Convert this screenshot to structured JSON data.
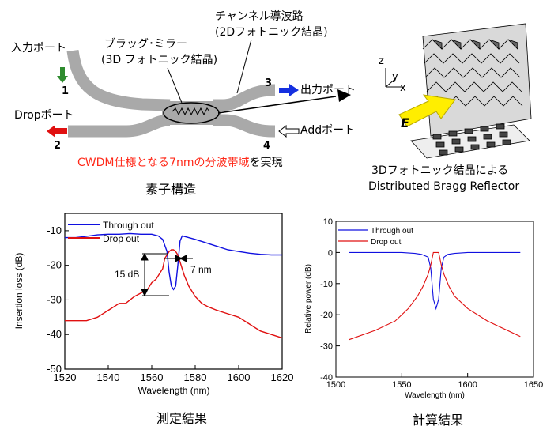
{
  "device": {
    "input_port": "入力ポート",
    "drop_port": "Dropポート",
    "output_port": "出力ポート",
    "add_port": "Addポート",
    "bragg_mirror_line1": "ブラッグ･ミラー",
    "bragg_mirror_line2": "(3D フォトニック結晶)",
    "channel_waveguide_line1": "チャンネル導波路",
    "channel_waveguide_line2": "(2Dフォトニック結晶)",
    "port_numbers": [
      "1",
      "2",
      "3",
      "4"
    ],
    "cwdm_red": "CWDM仕様となる7nmの分波帯域",
    "cwdm_black": "を実現",
    "caption": "素子構造"
  },
  "crystal": {
    "axis_z": "z",
    "axis_y": "y",
    "axis_x": "x",
    "field_label": "E",
    "caption_line1": "3Dフォトニック結晶による",
    "caption_line2": "Distributed Bragg Reflector"
  },
  "colors": {
    "through": "#1010e0",
    "drop": "#e01010",
    "waveguide": "#a8a8a8",
    "arrow_yellow": "#ffee00",
    "arrow_green": "#2e8b2e"
  },
  "chart_data": [
    {
      "type": "line",
      "caption": "測定結果",
      "xlabel": "Wavelength (nm)",
      "ylabel": "Insertion loss (dB)",
      "xlim": [
        1520,
        1620
      ],
      "ylim": [
        -50,
        -5
      ],
      "x_ticks": [
        "1520",
        "1540",
        "1560",
        "1580",
        "1600",
        "1620"
      ],
      "y_ticks": [
        "-50",
        "-40",
        "-30",
        "-20",
        "-10"
      ],
      "annotations": [
        "15 dB",
        "7 nm"
      ],
      "series": [
        {
          "name": "Through out",
          "color": "#1010e0",
          "x": [
            1520,
            1525,
            1530,
            1535,
            1540,
            1545,
            1550,
            1555,
            1560,
            1563,
            1565,
            1567,
            1568,
            1569,
            1570,
            1571,
            1572,
            1573,
            1574,
            1576,
            1580,
            1585,
            1590,
            1595,
            1600,
            1605,
            1610,
            1615,
            1620
          ],
          "y": [
            -12,
            -12,
            -11.6,
            -11.2,
            -11,
            -11,
            -10.8,
            -11,
            -11,
            -11.5,
            -12.5,
            -16,
            -22,
            -26,
            -27,
            -26,
            -20,
            -13,
            -11.5,
            -11.8,
            -12.5,
            -13.5,
            -14.5,
            -15.5,
            -16,
            -16.5,
            -16.8,
            -17,
            -17
          ]
        },
        {
          "name": "Drop out",
          "color": "#e01010",
          "x": [
            1520,
            1525,
            1530,
            1535,
            1540,
            1545,
            1548,
            1552,
            1555,
            1558,
            1560,
            1562,
            1564,
            1565,
            1566,
            1567,
            1568,
            1569,
            1570,
            1571,
            1572,
            1573,
            1574,
            1575,
            1577,
            1580,
            1583,
            1586,
            1590,
            1595,
            1600,
            1605,
            1610,
            1615,
            1620
          ],
          "y": [
            -36,
            -36,
            -36,
            -35,
            -33,
            -31,
            -31,
            -29,
            -28,
            -27,
            -25,
            -24,
            -22,
            -21,
            -18,
            -17,
            -16,
            -15.5,
            -15.5,
            -16,
            -17,
            -19,
            -21,
            -23,
            -26,
            -29,
            -31,
            -32,
            -33,
            -34,
            -35,
            -37,
            -39,
            -40,
            -41
          ]
        }
      ]
    },
    {
      "type": "line",
      "caption": "計算結果",
      "xlabel": "Wavelength (nm)",
      "ylabel": "Relative power (dB)",
      "xlim": [
        1500,
        1650
      ],
      "ylim": [
        -40,
        10
      ],
      "x_ticks": [
        "1500",
        "1550",
        "1600",
        "1650"
      ],
      "y_ticks": [
        "-40",
        "-30",
        "-20",
        "-10",
        "0",
        "10"
      ],
      "series": [
        {
          "name": "Through out",
          "color": "#1010e0",
          "x": [
            1510,
            1550,
            1560,
            1565,
            1570,
            1572,
            1574,
            1576,
            1578,
            1580,
            1582,
            1585,
            1590,
            1600,
            1640
          ],
          "y": [
            0,
            0,
            -0.3,
            -0.6,
            -1.5,
            -5,
            -15,
            -18,
            -15,
            -5,
            -1.5,
            -0.6,
            -0.3,
            0,
            0
          ]
        },
        {
          "name": "Drop out",
          "color": "#e01010",
          "x": [
            1510,
            1530,
            1545,
            1555,
            1562,
            1566,
            1568,
            1570,
            1572,
            1574,
            1576,
            1578,
            1580,
            1582,
            1584,
            1586,
            1590,
            1600,
            1615,
            1640
          ],
          "y": [
            -28,
            -25,
            -22,
            -18,
            -14,
            -11,
            -9,
            -7,
            -4,
            0,
            0,
            0,
            -4,
            -7,
            -9,
            -11,
            -14,
            -18,
            -22,
            -27
          ]
        }
      ]
    }
  ]
}
